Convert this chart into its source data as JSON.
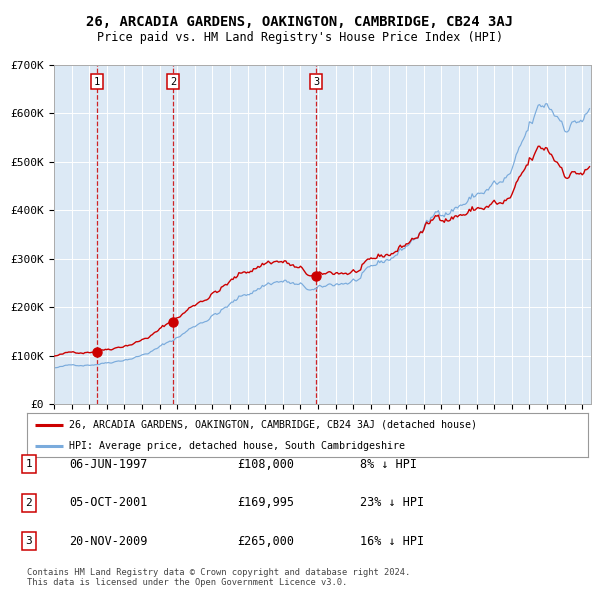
{
  "title": "26, ARCADIA GARDENS, OAKINGTON, CAMBRIDGE, CB24 3AJ",
  "subtitle": "Price paid vs. HM Land Registry's House Price Index (HPI)",
  "legend_line1": "26, ARCADIA GARDENS, OAKINGTON, CAMBRIDGE, CB24 3AJ (detached house)",
  "legend_line2": "HPI: Average price, detached house, South Cambridgeshire",
  "transactions": [
    {
      "num": 1,
      "date": "06-JUN-1997",
      "price": 108000,
      "pct": "8%",
      "dir": "↓",
      "x_year": 1997.44
    },
    {
      "num": 2,
      "date": "05-OCT-2001",
      "price": 169995,
      "pct": "23%",
      "dir": "↓",
      "x_year": 2001.76
    },
    {
      "num": 3,
      "date": "20-NOV-2009",
      "price": 265000,
      "pct": "16%",
      "dir": "↓",
      "x_year": 2009.89
    }
  ],
  "copyright": "Contains HM Land Registry data © Crown copyright and database right 2024.\nThis data is licensed under the Open Government Licence v3.0.",
  "bg_color": "#dce9f5",
  "grid_color": "#ffffff",
  "hpi_color": "#7aabdc",
  "price_color": "#cc0000",
  "vline_color": "#cc0000",
  "ylim": [
    0,
    700000
  ],
  "xlim_start": 1995.0,
  "xlim_end": 2025.5
}
